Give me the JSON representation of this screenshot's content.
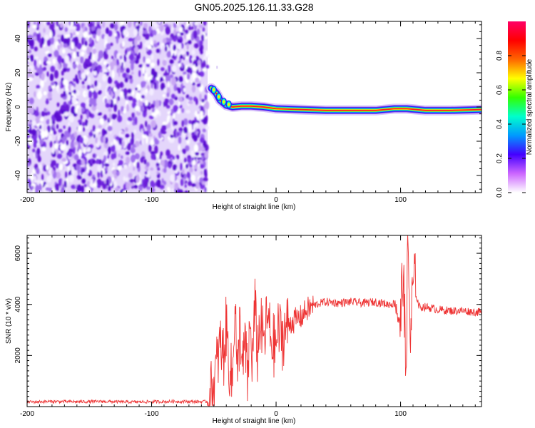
{
  "figure": {
    "title": "GN05.2025.126.11.33.G28"
  },
  "chart_data": [
    {
      "type": "heatmap",
      "id": "spectrogram",
      "xlabel": "Height of straight line (km)",
      "ylabel": "Frequency (Hz)",
      "xlim": [
        -200,
        165
      ],
      "ylim": [
        -50,
        50
      ],
      "x_ticks": [
        -200,
        -100,
        0,
        100
      ],
      "y_ticks": [
        -40,
        -20,
        0,
        20,
        40
      ],
      "noise_region": {
        "x_start": -200,
        "x_end": -55,
        "color": "#6a1fd8"
      },
      "signal_track": [
        {
          "x": -52,
          "y": 11
        },
        {
          "x": -48,
          "y": 8
        },
        {
          "x": -45,
          "y": 4
        },
        {
          "x": -40,
          "y": 1
        },
        {
          "x": -35,
          "y": 0
        },
        {
          "x": -28,
          "y": 0.5
        },
        {
          "x": -20,
          "y": 0.5
        },
        {
          "x": -10,
          "y": 0
        },
        {
          "x": 0,
          "y": -1
        },
        {
          "x": 20,
          "y": -1.5
        },
        {
          "x": 40,
          "y": -2
        },
        {
          "x": 60,
          "y": -2
        },
        {
          "x": 80,
          "y": -2
        },
        {
          "x": 95,
          "y": -1
        },
        {
          "x": 105,
          "y": -1
        },
        {
          "x": 120,
          "y": -2
        },
        {
          "x": 140,
          "y": -2
        },
        {
          "x": 165,
          "y": -1.5
        }
      ],
      "colorbar": {
        "label": "Normalized spectral amplitude",
        "range": [
          0,
          1
        ],
        "ticks": [
          "0.0",
          "0.2",
          "0.4",
          "0.6",
          "0.8"
        ],
        "tick_values": [
          0,
          0.2,
          0.4,
          0.6,
          0.8
        ],
        "colors": [
          "#ffffff",
          "#cc66ff",
          "#4400ff",
          "#0099ff",
          "#00ffcc",
          "#33ff00",
          "#ffff00",
          "#ff6600",
          "#ff0000",
          "#ff0066"
        ]
      },
      "grid": false
    },
    {
      "type": "line",
      "id": "snr",
      "xlabel": "Height of straight line (km)",
      "ylabel": "SNR (10 * v/v)",
      "xlim": [
        -200,
        165
      ],
      "ylim": [
        0,
        6700
      ],
      "x_ticks": [
        -200,
        -100,
        0,
        100
      ],
      "y_ticks": [
        2000,
        4000,
        6000
      ],
      "series": [
        {
          "color": "#ee3333",
          "x": [
            -200,
            -180,
            -160,
            -140,
            -120,
            -100,
            -80,
            -60,
            -55,
            -50,
            -48,
            -45,
            -42,
            -40,
            -38,
            -35,
            -33,
            -31,
            -29,
            -27,
            -25,
            -23,
            -21,
            -19,
            -17,
            -15,
            -13,
            -10,
            -7,
            -4,
            -1,
            2,
            5,
            8,
            12,
            16,
            20,
            25,
            30,
            35,
            40,
            50,
            60,
            70,
            80,
            90,
            97,
            100,
            102,
            104,
            106,
            108,
            110,
            115,
            120,
            130,
            140,
            150,
            160,
            165
          ],
          "y": [
            180,
            200,
            190,
            200,
            180,
            190,
            200,
            190,
            200,
            800,
            1500,
            2400,
            2000,
            3200,
            1800,
            900,
            4600,
            700,
            3500,
            1200,
            2600,
            1000,
            3100,
            1800,
            3900,
            2100,
            3300,
            2500,
            3500,
            2600,
            2300,
            3000,
            2700,
            3100,
            3300,
            3400,
            3500,
            3800,
            3950,
            4050,
            4100,
            4050,
            4100,
            4050,
            4100,
            4000,
            4050,
            3200,
            5500,
            1500,
            6200,
            2500,
            4800,
            3900,
            3900,
            3800,
            3750,
            3750,
            3700,
            3700
          ]
        }
      ],
      "grid": false
    }
  ]
}
